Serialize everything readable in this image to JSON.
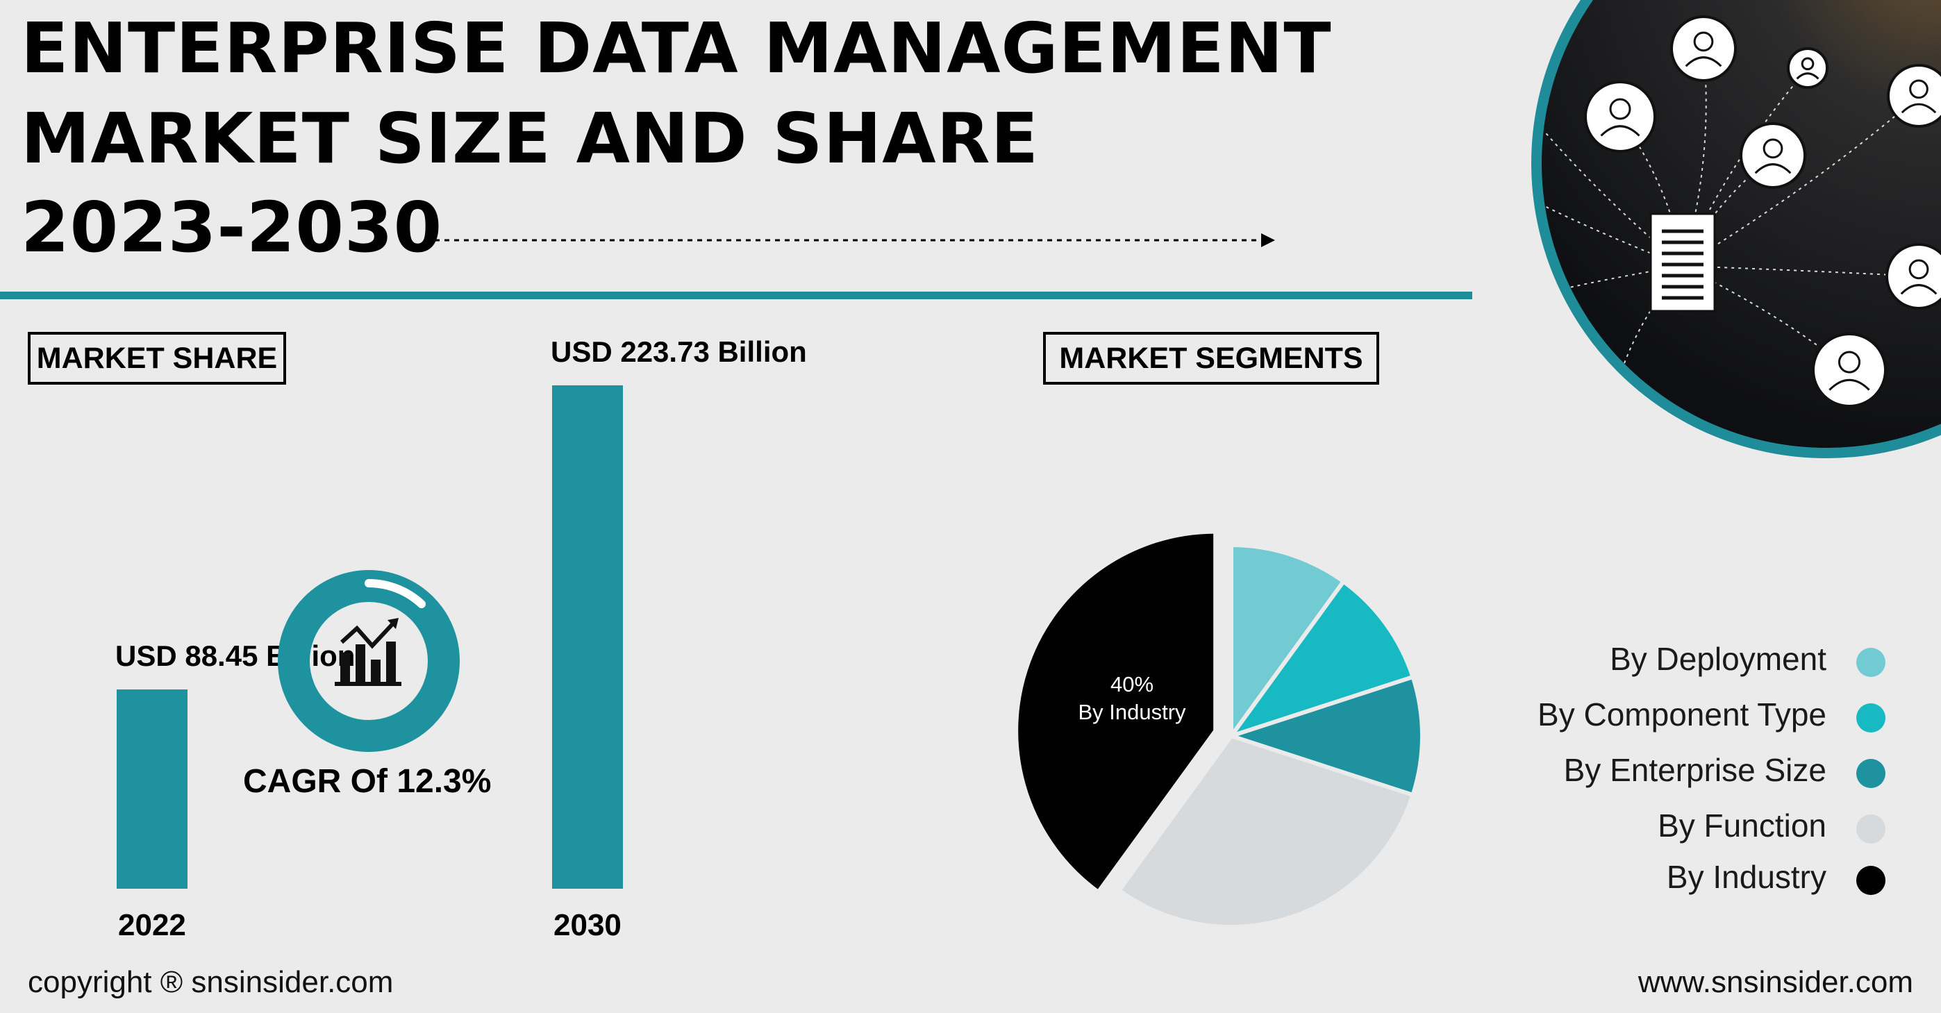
{
  "header": {
    "title_line1": "ENTERPRISE DATA MANAGEMENT",
    "title_line2": "MARKET SIZE AND SHARE",
    "title_line3": "2023-2030"
  },
  "market_share": {
    "label": "MARKET SHARE",
    "cagr_text": "CAGR Of 12.3%",
    "cagr_icon": "bar-chart-growth-icon"
  },
  "market_segments": {
    "label": "MARKET SEGMENTS"
  },
  "colors": {
    "teal_bar": "#1e939f",
    "divider": "#1e8c99",
    "by_deployment": "#72cbd3",
    "by_component_type": "#17b9c2",
    "by_enterprise_size": "#1e939f",
    "by_function": "#d6dadd",
    "by_industry": "#000000"
  },
  "chart_data": [
    {
      "type": "bar",
      "categories": [
        "2022",
        "2030"
      ],
      "values": [
        88.45,
        223.73
      ],
      "data_labels": [
        "USD 88.45 Billion",
        "USD 223.73 Billion"
      ],
      "title": "",
      "xlabel": "",
      "ylabel": ""
    },
    {
      "type": "pie",
      "labels": [
        "By Deployment",
        "By Component Type",
        "By Enterprise Size",
        "By Function",
        "By Industry"
      ],
      "values": [
        10,
        10,
        10,
        30,
        40
      ],
      "highlight": {
        "index": 4,
        "value_label": "40%",
        "name_label": "By Industry"
      },
      "legend_placement": "right"
    }
  ],
  "footer": {
    "copyright": "copyright ® snsinsider.com",
    "website": "www.snsinsider.com"
  }
}
